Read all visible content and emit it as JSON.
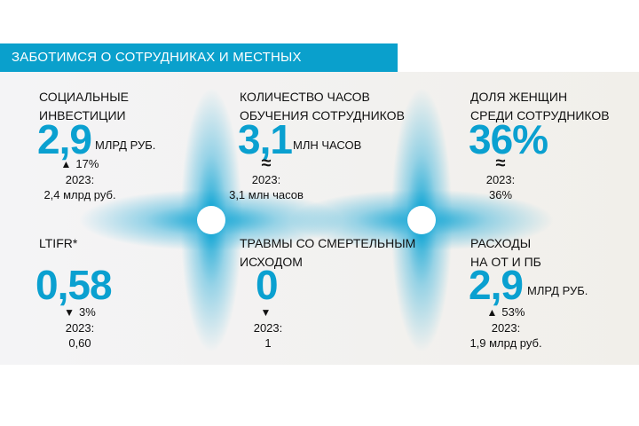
{
  "header": {
    "title": "ЗАБОТИМСЯ О СОТРУДНИКАХ И МЕСТНЫХ СООБЩЕСТВАХ"
  },
  "accent_color": "#0aa0cc",
  "metrics": [
    {
      "title1": "СОЦИАЛЬНЫЕ",
      "title2": "ИНВЕСТИЦИИ",
      "value": "2,9",
      "unit": "МЛРД РУБ.",
      "trend_icon": "arrow-up",
      "change": "17%",
      "prev_label": "2023:",
      "prev_value": "2,4 млрд руб."
    },
    {
      "title1": "КОЛИЧЕСТВО ЧАСОВ",
      "title2": "ОБУЧЕНИЯ СОТРУДНИКОВ",
      "value": "3,1",
      "unit": "МЛН ЧАСОВ",
      "trend_icon": "approx",
      "change": "≈",
      "prev_label": "2023:",
      "prev_value": "3,1 млн часов"
    },
    {
      "title1": "ДОЛЯ ЖЕНЩИН",
      "title2": "СРЕДИ СОТРУДНИКОВ",
      "value": "36%",
      "unit": "",
      "trend_icon": "approx",
      "change": "≈",
      "prev_label": "2023:",
      "prev_value": "36%"
    },
    {
      "title1": "LTIFR*",
      "title2": "",
      "value": "0,58",
      "unit": "",
      "trend_icon": "arrow-down",
      "change": "3%",
      "prev_label": "2023:",
      "prev_value": "0,60"
    },
    {
      "title1": "ТРАВМЫ СО СМЕРТЕЛЬНЫМ",
      "title2": "ИСХОДОМ",
      "value": "0",
      "unit": "",
      "trend_icon": "arrow-down",
      "change": "",
      "prev_label": "2023:",
      "prev_value": "1"
    },
    {
      "title1": "РАСХОДЫ",
      "title2": "НА ОТ И ПБ",
      "value": "2,9",
      "unit": "МЛРД РУБ.",
      "trend_icon": "arrow-up",
      "change": "53%",
      "prev_label": "2023:",
      "prev_value": "1,9 млрд руб."
    }
  ]
}
